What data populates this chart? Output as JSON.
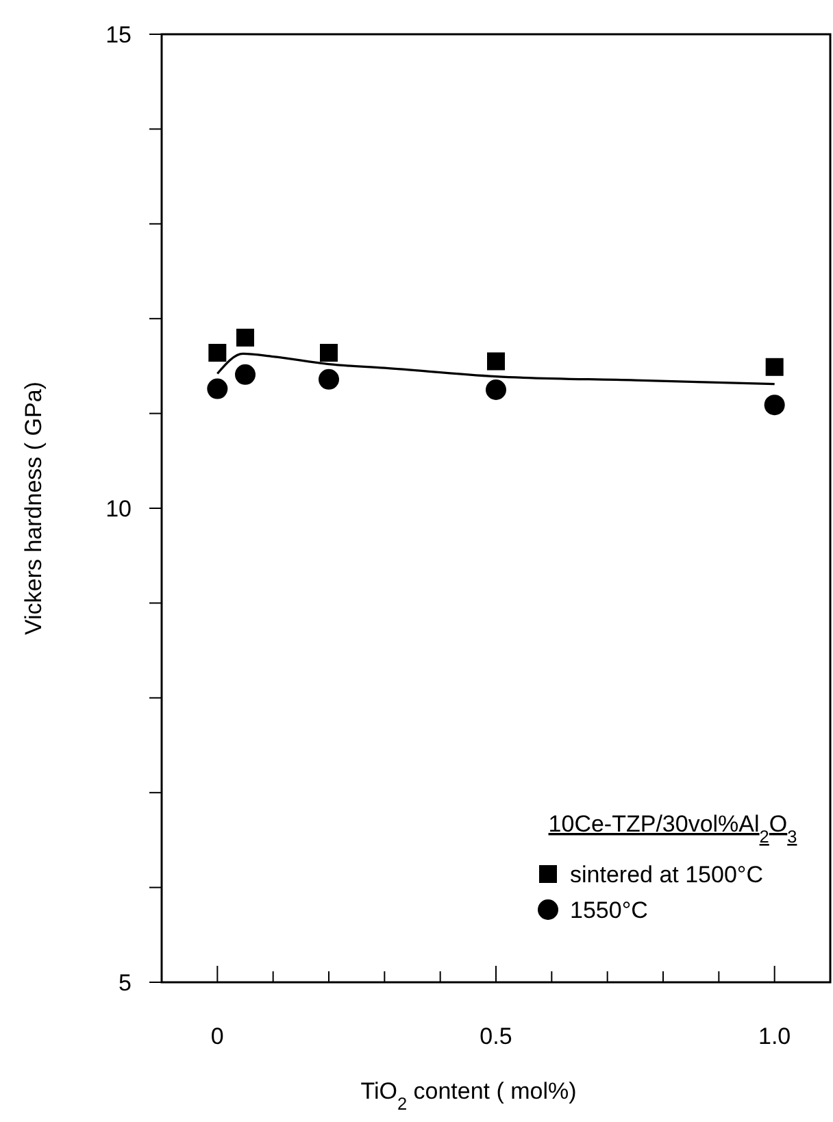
{
  "chart_data": {
    "type": "scatter",
    "xlabel": "TiO$_{2}$ content ( mol%)",
    "ylabel": "Vickers hardness ( GPa)",
    "legend_title": "10Ce-TZP/30vol%Al$_{2}$O$_{3}$",
    "legend": "bottom right",
    "xlim": [
      -0.1,
      1.1
    ],
    "ylim": [
      5,
      15
    ],
    "xticks": [
      {
        "value": 0,
        "label": "0"
      },
      {
        "value": 0.1,
        "label": null
      },
      {
        "value": 0.2,
        "label": null
      },
      {
        "value": 0.3,
        "label": null
      },
      {
        "value": 0.4,
        "label": null
      },
      {
        "value": 0.5,
        "label": "0.5"
      },
      {
        "value": 0.6,
        "label": null
      },
      {
        "value": 0.7,
        "label": null
      },
      {
        "value": 0.8,
        "label": null
      },
      {
        "value": 0.9,
        "label": null
      },
      {
        "value": 1.0,
        "label": "1.0"
      }
    ],
    "yticks": [
      5,
      {
        "value": 6,
        "label": null
      },
      {
        "value": 7,
        "label": null
      },
      {
        "value": 8,
        "label": null
      },
      {
        "value": 9,
        "label": null
      },
      10,
      {
        "value": 11,
        "label": null
      },
      {
        "value": 12,
        "label": null
      },
      {
        "value": 13,
        "label": null
      },
      {
        "value": 14,
        "label": null
      },
      15
    ],
    "grid": false,
    "series": [
      {
        "name": "sintered at 1500°C",
        "color": "#000000",
        "marker": "square",
        "x": [
          0,
          0.05,
          0.2,
          0.5,
          1.0
        ],
        "values": [
          11.64,
          11.8,
          11.64,
          11.55,
          11.49
        ]
      },
      {
        "name": "1550°C",
        "color": "#000000",
        "marker": "circle",
        "x": [
          0,
          0.05,
          0.2,
          0.5,
          1.0
        ],
        "values": [
          11.26,
          11.41,
          11.36,
          11.25,
          11.09
        ]
      },
      {
        "type": "line",
        "color": "#000000",
        "marker": "none",
        "line_style": "solid",
        "x": [
          0,
          0.046,
          0.1,
          0.2,
          0.3,
          0.5,
          0.75,
          1.0
        ],
        "values": [
          11.42,
          11.63,
          11.6,
          11.52,
          11.48,
          11.39,
          11.35,
          11.31
        ]
      }
    ]
  }
}
